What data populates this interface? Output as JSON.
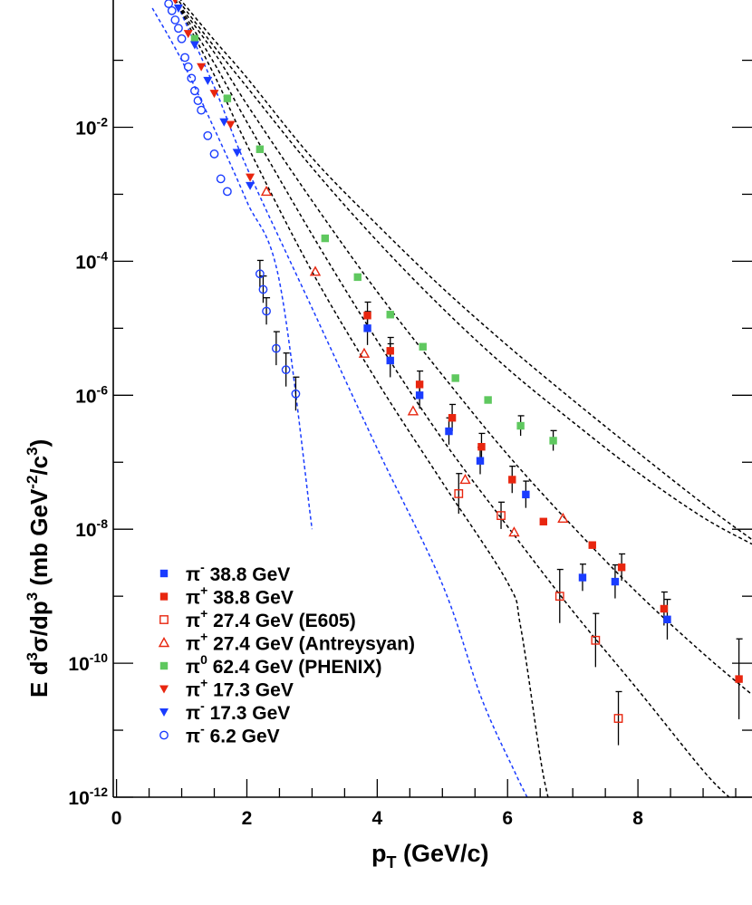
{
  "chart_data": {
    "type": "scatter",
    "xlabel_main": "p",
    "xlabel_sub": "T",
    "xlabel_rest": " (GeV/c)",
    "ylabel": "E d³σ/dp³ (mb GeV⁻²/c³)",
    "ylabel_parts": {
      "a": "E d",
      "b": "3",
      "c": "σ/dp",
      "d": "3",
      "e": " (mb GeV",
      "f": "-2",
      "g": "/c",
      "h": "3",
      "i": ")"
    },
    "xlim": [
      -0.05,
      9.75
    ],
    "ylim_log10": [
      -12,
      -0.1
    ],
    "y_scale": "log",
    "x_ticks": [
      {
        "value": 0,
        "label": "0"
      },
      {
        "value": 2,
        "label": "2"
      },
      {
        "value": 4,
        "label": "4"
      },
      {
        "value": 6,
        "label": "6"
      },
      {
        "value": 8,
        "label": "8"
      }
    ],
    "y_ticks": [
      {
        "exp": -12,
        "base": "10",
        "sup": "-12"
      },
      {
        "exp": -10,
        "base": "10",
        "sup": "-10"
      },
      {
        "exp": -8,
        "base": "10",
        "sup": "-8"
      },
      {
        "exp": -6,
        "base": "10",
        "sup": "-6"
      },
      {
        "exp": -4,
        "base": "10",
        "sup": "-4"
      },
      {
        "exp": -2,
        "base": "10",
        "sup": "-2"
      }
    ],
    "grid": false,
    "legend_position": "bottom-left",
    "series": [
      {
        "key": "pim388",
        "sym": "π",
        "sup": "-",
        "rest": " 38.8 GeV",
        "marker": "square-filled",
        "color": "#1a3cff",
        "points": [
          [
            3.85,
            1e-05,
            0.25
          ],
          [
            4.2,
            3.3e-06,
            0.25
          ],
          [
            4.65,
            1e-06,
            0.2
          ],
          [
            5.1,
            2.9e-07,
            0.2
          ],
          [
            5.58,
            1.05e-07,
            0.2
          ],
          [
            6.28,
            3.3e-08,
            0.2
          ],
          [
            7.15,
            1.9e-09,
            0.2
          ],
          [
            7.65,
            1.65e-09,
            0.25
          ],
          [
            8.45,
            4.5e-10,
            0.3
          ]
        ]
      },
      {
        "key": "pip388",
        "sym": "π",
        "sup": "+",
        "rest": " 38.8 GeV",
        "marker": "square-filled",
        "color": "#e8260f",
        "points": [
          [
            3.85,
            1.55e-05,
            0.2
          ],
          [
            4.2,
            4.6e-06,
            0.2
          ],
          [
            4.65,
            1.45e-06,
            0.2
          ],
          [
            5.15,
            4.6e-07,
            0.2
          ],
          [
            5.6,
            1.7e-07,
            0.2
          ],
          [
            6.07,
            5.5e-08,
            0.2
          ],
          [
            6.55,
            1.3e-08,
            0
          ],
          [
            7.3,
            5.8e-09,
            0
          ],
          [
            7.75,
            2.7e-09,
            0.2
          ],
          [
            8.4,
            6.5e-10,
            0.25
          ],
          [
            9.55,
            5.8e-11,
            0.6
          ]
        ]
      },
      {
        "key": "pip274e",
        "sym": "π",
        "sup": "+",
        "rest": " 27.4 GeV (E605)",
        "marker": "square-open",
        "color": "#e8260f",
        "points": [
          [
            5.25,
            3.4e-08,
            0.3
          ],
          [
            5.9,
            1.6e-08,
            0.2
          ],
          [
            6.8,
            1e-09,
            0.4
          ],
          [
            7.35,
            2.2e-10,
            0.4
          ],
          [
            7.7,
            1.5e-11,
            0.4
          ]
        ]
      },
      {
        "key": "pip274a",
        "sym": "π",
        "sup": "+",
        "rest": " 27.4 GeV (Antreysyan)",
        "marker": "triangle-open",
        "color": "#e8260f",
        "points": [
          [
            2.3,
            0.0011,
            0
          ],
          [
            3.05,
            7e-05,
            0
          ],
          [
            3.8,
            4.2e-06,
            0
          ],
          [
            4.55,
            5.8e-07,
            0
          ],
          [
            5.35,
            5.5e-08,
            0
          ],
          [
            6.1,
            9e-09,
            0
          ],
          [
            6.85,
            1.45e-08,
            0
          ]
        ]
      },
      {
        "key": "pi0624",
        "sym": "π",
        "sup": "0",
        "rest": " 62.4 GeV (PHENIX)",
        "marker": "square-filled",
        "color": "#5fc85f",
        "points": [
          [
            1.2,
            0.21,
            0
          ],
          [
            1.7,
            0.027,
            0
          ],
          [
            2.2,
            0.0047,
            0
          ],
          [
            3.2,
            0.00022,
            0
          ],
          [
            3.7,
            5.8e-05,
            0
          ],
          [
            4.2,
            1.6e-05,
            0
          ],
          [
            4.7,
            5.3e-06,
            0
          ],
          [
            5.2,
            1.8e-06,
            0
          ],
          [
            5.7,
            8.5e-07,
            0
          ],
          [
            6.2,
            3.5e-07,
            0.15
          ],
          [
            6.7,
            2.1e-07,
            0.15
          ]
        ]
      },
      {
        "key": "pip173",
        "sym": "π",
        "sup": "+",
        "rest": " 17.3 GeV",
        "marker": "triangle-down-filled",
        "color": "#e8260f",
        "points": [
          [
            0.9,
            0.8,
            0
          ],
          [
            1.1,
            0.25,
            0
          ],
          [
            1.3,
            0.08,
            0
          ],
          [
            1.5,
            0.032,
            0
          ],
          [
            1.75,
            0.011,
            0
          ],
          [
            2.05,
            0.0018,
            0
          ]
        ]
      },
      {
        "key": "pim173",
        "sym": "π",
        "sup": "-",
        "rest": " 17.3 GeV",
        "marker": "triangle-down-filled",
        "color": "#1a3cff",
        "points": [
          [
            0.95,
            0.6,
            0
          ],
          [
            1.2,
            0.17,
            0
          ],
          [
            1.4,
            0.05,
            0
          ],
          [
            1.65,
            0.012,
            0
          ],
          [
            1.85,
            0.0042,
            0
          ],
          [
            2.05,
            0.00135,
            0
          ]
        ]
      },
      {
        "key": "pim62",
        "sym": "π",
        "sup": "-",
        "rest": " 6.2  GeV",
        "marker": "circle-open",
        "color": "#1a3cff",
        "points": [
          [
            0.7,
            1.0,
            0
          ],
          [
            0.8,
            0.7,
            0
          ],
          [
            0.85,
            0.55,
            0
          ],
          [
            0.9,
            0.4,
            0
          ],
          [
            0.95,
            0.3,
            0
          ],
          [
            1.0,
            0.21,
            0
          ],
          [
            1.05,
            0.11,
            0
          ],
          [
            1.1,
            0.08,
            0
          ],
          [
            1.15,
            0.054,
            0
          ],
          [
            1.2,
            0.035,
            0
          ],
          [
            1.25,
            0.025,
            0
          ],
          [
            1.3,
            0.018,
            0
          ],
          [
            1.4,
            0.0075,
            0
          ],
          [
            1.5,
            0.004,
            0
          ],
          [
            1.6,
            0.0017,
            0
          ],
          [
            1.7,
            0.0011,
            0
          ],
          [
            2.2,
            6.5e-05,
            0.2
          ],
          [
            2.25,
            3.8e-05,
            0.2
          ],
          [
            2.3,
            1.8e-05,
            0.2
          ],
          [
            2.45,
            5e-06,
            0.25
          ],
          [
            2.6,
            2.4e-06,
            0.25
          ],
          [
            2.75,
            1.05e-06,
            0.25
          ]
        ]
      }
    ],
    "curves": [
      {
        "color": "#1a3cff",
        "points": [
          [
            0.55,
            0.6
          ],
          [
            1.0,
            0.1
          ],
          [
            1.5,
            0.0095
          ],
          [
            2.0,
            0.00078
          ],
          [
            2.5,
            5e-05
          ],
          [
            3.0,
            1e-08
          ]
        ]
      },
      {
        "color": "#1a3cff",
        "points": [
          [
            0.9,
            0.8
          ],
          [
            1.5,
            0.04
          ],
          [
            2.0,
            0.0025
          ],
          [
            3.0,
            2e-05
          ],
          [
            4.0,
            1.6e-07
          ],
          [
            5.0,
            1.5e-09
          ],
          [
            5.6,
            3e-11
          ],
          [
            6.1,
            2.5e-12
          ],
          [
            6.3,
            1e-12
          ]
        ]
      },
      {
        "color": "#000000",
        "points": [
          [
            0.9,
            0.8
          ],
          [
            1.5,
            0.06
          ],
          [
            2.0,
            0.0055
          ],
          [
            3.0,
            7e-05
          ],
          [
            4.0,
            1.6e-06
          ],
          [
            5.0,
            5e-08
          ],
          [
            6.0,
            1.6e-09
          ],
          [
            6.2,
            3.5e-10
          ],
          [
            6.5,
            4e-12
          ],
          [
            6.62,
            1e-12
          ]
        ]
      },
      {
        "color": "#000000",
        "points": [
          [
            0.9,
            0.8
          ],
          [
            1.5,
            0.09
          ],
          [
            2.0,
            0.012
          ],
          [
            3.0,
            0.00025
          ],
          [
            4.0,
            6.5e-06
          ],
          [
            5.0,
            2.2e-07
          ],
          [
            6.0,
            1.1e-08
          ],
          [
            7.0,
            6e-10
          ],
          [
            8.0,
            4e-11
          ],
          [
            9.0,
            2.5e-12
          ],
          [
            9.4,
            1e-12
          ]
        ]
      },
      {
        "color": "#000000",
        "points": [
          [
            0.9,
            0.8
          ],
          [
            1.5,
            0.13
          ],
          [
            2.0,
            0.022
          ],
          [
            3.0,
            0.0008
          ],
          [
            4.0,
            3.5e-05
          ],
          [
            5.0,
            2e-06
          ],
          [
            6.0,
            1.3e-07
          ],
          [
            7.0,
            1.1e-08
          ],
          [
            8.0,
            1.1e-09
          ],
          [
            9.0,
            1.4e-10
          ],
          [
            9.75,
            3.4e-11
          ]
        ]
      },
      {
        "color": "#000000",
        "points": [
          [
            0.9,
            0.9
          ],
          [
            1.5,
            0.16
          ],
          [
            2.0,
            0.04
          ],
          [
            3.0,
            0.0025
          ],
          [
            4.0,
            0.0002
          ],
          [
            5.0,
            2e-05
          ],
          [
            6.0,
            2.5e-06
          ],
          [
            7.0,
            4e-07
          ],
          [
            8.0,
            7e-08
          ],
          [
            9.0,
            1.5e-08
          ],
          [
            9.75,
            6e-09
          ]
        ]
      },
      {
        "color": "#000000",
        "points": [
          [
            0.9,
            1.0
          ],
          [
            1.5,
            0.2
          ],
          [
            2.0,
            0.055
          ],
          [
            3.0,
            0.0035
          ],
          [
            4.0,
            0.00035
          ],
          [
            5.0,
            4e-05
          ],
          [
            6.0,
            5.5e-06
          ],
          [
            7.0,
            8.5e-07
          ],
          [
            8.0,
            1.4e-07
          ],
          [
            9.0,
            2.4e-08
          ],
          [
            9.75,
            7e-09
          ]
        ]
      }
    ]
  }
}
